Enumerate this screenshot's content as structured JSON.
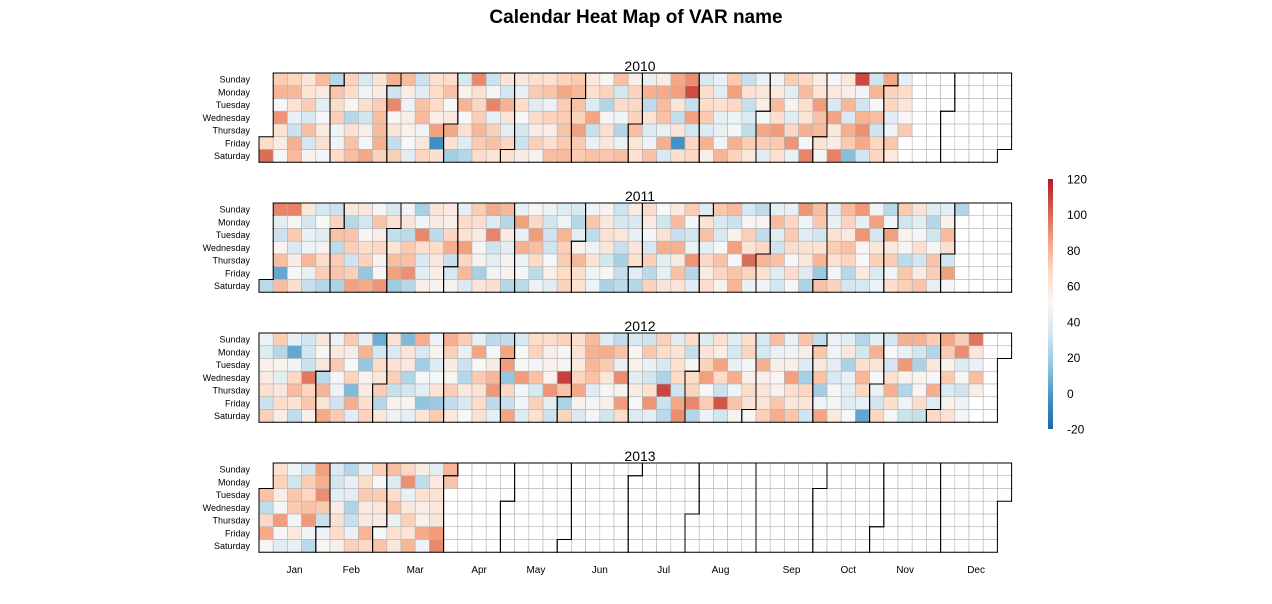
{
  "chart_data": {
    "type": "heatmap",
    "title": "Calendar Heat Map of VAR name",
    "years": [
      2010,
      2011,
      2012,
      2013
    ],
    "year_labels": [
      "2010",
      "2011",
      "2012",
      "2013"
    ],
    "day_labels": [
      "Sunday",
      "Monday",
      "Tuesday",
      "Wednesday",
      "Thursday",
      "Friday",
      "Saturday"
    ],
    "month_labels": [
      "Jan",
      "Feb",
      "Mar",
      "Apr",
      "May",
      "Jun",
      "Jul",
      "Aug",
      "Sep",
      "Oct",
      "Nov",
      "Dec"
    ],
    "data_start": "2010-01-01",
    "data_end": "2013-04-01",
    "value_range": [
      -20,
      120
    ],
    "colorbar_ticks": [
      120,
      100,
      80,
      60,
      40,
      20,
      0,
      -20
    ],
    "colorbar_tick_labels": [
      "120",
      "100",
      "80",
      "60",
      "40",
      "20",
      "0",
      "-20"
    ],
    "color_scale": [
      "#2166ac",
      "#4393c3",
      "#92c5de",
      "#d1e5f0",
      "#f7f7f7",
      "#fddbc7",
      "#f4a582",
      "#d6604d",
      "#b2182b"
    ],
    "empty_cell_color": "#ffffff",
    "cell_border_color": "#b4b4b4",
    "month_border_color": "#000000",
    "daily_values": [
      [
        67,
        99,
        72,
        80,
        48,
        89,
        63,
        58,
        48,
        69,
        79,
        63,
        43,
        31,
        81,
        78,
        60,
        62,
        72,
        36,
        77,
        34,
        54,
        78,
        59,
        41,
        50,
        59,
        64,
        48,
        25,
        75,
        67,
        71,
        46,
        47,
        67,
        70,
        67,
        52,
        25,
        64,
        76,
        77,
        36,
        46,
        65,
        33,
        56,
        48,
        84,
        62,
        57,
        72,
        77,
        78,
        81,
        70,
        81,
        32,
        92,
        51,
        61,
        29,
        71,
        78,
        56,
        45,
        56,
        54,
        50,
        40,
        31,
        40,
        76,
        78,
        46,
        60,
        69,
        64,
        67,
        67,
        55,
        86,
        -4,
        65,
        67,
        76,
        50,
        59,
        84,
        63,
        20,
        36,
        54,
        80,
        50,
        64,
        39,
        25,
        92,
        65,
        69,
        72,
        79,
        73,
        66,
        31,
        48,
        93,
        42,
        71,
        76,
        61,
        62,
        34,
        81,
        62,
        41,
        69,
        64,
        60,
        43,
        67,
        50,
        34,
        31,
        57,
        64,
        73,
        40,
        66,
        57,
        71,
        53,
        64,
        75,
        44,
        70,
        56,
        64,
        77,
        70,
        84,
        72,
        72,
        75,
        73,
        78,
        73,
        79,
        76,
        70,
        86,
        73,
        73,
        59,
        64,
        38,
        85,
        30,
        43,
        76,
        51,
        70,
        24,
        51,
        65,
        60,
        74,
        76,
        34,
        66,
        47,
        24,
        44,
        77,
        56,
        70,
        68,
        70,
        77,
        61,
        63,
        43,
        81,
        27,
        62,
        38,
        45,
        76,
        57,
        83,
        78,
        76,
        43,
        82,
        36,
        84,
        86,
        60,
        29,
        61,
        -3,
        65,
        91,
        107,
        30,
        86,
        34,
        69,
        68,
        36,
        67,
        67,
        73,
        38,
        81,
        55,
        44,
        40,
        63,
        42,
        43,
        47,
        80,
        73,
        86,
        68,
        45,
        48,
        81,
        70,
        30,
        64,
        30,
        38,
        28,
        72,
        60,
        44,
        60,
        55,
        48,
        84,
        72,
        39,
        47,
        59,
        78,
        65,
        87,
        73,
        64,
        72,
        41,
        54,
        39,
        69,
        89,
        43,
        68,
        78,
        65,
        61,
        81,
        48,
        93,
        57,
        62,
        87,
        76,
        78,
        62,
        51,
        48,
        59,
        37,
        85,
        60,
        58,
        94,
        60,
        56,
        79,
        36,
        82,
        73,
        13,
        108,
        47,
        33,
        80,
        90,
        83,
        33,
        32,
        80,
        49,
        77,
        32,
        69,
        69,
        84,
        70,
        69,
        40,
        47,
        74,
        59,
        42,
        67,
        61,
        50,
        73
      ],
      [
        26,
        93,
        41,
        31,
        54,
        77,
        5,
        77,
        94,
        51,
        73,
        37,
        57,
        49,
        65,
        60,
        34,
        44,
        45,
        79,
        43,
        30,
        35,
        50,
        39,
        54,
        66,
        72,
        25,
        31,
        70,
        76,
        27,
        72,
        74,
        23,
        60,
        25,
        75,
        71,
        32,
        71,
        86,
        60,
        34,
        52,
        66,
        70,
        16,
        83,
        51,
        75,
        56,
        68,
        53,
        51,
        89,
        36,
        63,
        29,
        62,
        77,
        86,
        19,
        47,
        61,
        27,
        73,
        76,
        90,
        25,
        21,
        47,
        92,
        65,
        36,
        41,
        56,
        61,
        58,
        27,
        67,
        60,
        57,
        54,
        58,
        55,
        69,
        82,
        30,
        35,
        53,
        42,
        67,
        63,
        86,
        69,
        79,
        37,
        72,
        65,
        57,
        48,
        53,
        21,
        61,
        83,
        38,
        93,
        32,
        41,
        46,
        65,
        79,
        25,
        59,
        41,
        53,
        54,
        25,
        42,
        86,
        42,
        81,
        45,
        49,
        26,
        52,
        68,
        87,
        77,
        67,
        27,
        45,
        45,
        33,
        32,
        32,
        49,
        55,
        39,
        39,
        46,
        80,
        71,
        72,
        67,
        70,
        36,
        25,
        41,
        53,
        79,
        65,
        63,
        47,
        74,
        27,
        46,
        63,
        46,
        45,
        53,
        60,
        63,
        60,
        34,
        51,
        22,
        32,
        35,
        60,
        30,
        21,
        30,
        27,
        57,
        36,
        43,
        61,
        64,
        40,
        25,
        66,
        58,
        48,
        35,
        71,
        26,
        70,
        50,
        33,
        63,
        82,
        41,
        42,
        62,
        58,
        78,
        30,
        81,
        59,
        76,
        62,
        72,
        49,
        33,
        44,
        89,
        25,
        40,
        39,
        63,
        76,
        41,
        68,
        58,
        66,
        74,
        37,
        35,
        49,
        76,
        69,
        53,
        78,
        31,
        54,
        86,
        49,
        75,
        80,
        35,
        51,
        71,
        62,
        99,
        70,
        44,
        28,
        52,
        28,
        68,
        80,
        64,
        46,
        42,
        78,
        40,
        32,
        76,
        39,
        34,
        43,
        69,
        73,
        66,
        51,
        66,
        49,
        89,
        46,
        39,
        63,
        60,
        39,
        23,
        77,
        74,
        33,
        62,
        80,
        17,
        76,
        40,
        44,
        63,
        72,
        64,
        48,
        70,
        78,
        70,
        59,
        76,
        69,
        25,
        34,
        88,
        42,
        89,
        51,
        50,
        59,
        35,
        47,
        86,
        34,
        60,
        71,
        37,
        45,
        26,
        47,
        86,
        59,
        72,
        47,
        65,
        73,
        33,
        54,
        51,
        27,
        74,
        71,
        63,
        41,
        48,
        65,
        33,
        58,
        75,
        40,
        25,
        33,
        51,
        75,
        72,
        42,
        41,
        53,
        78,
        65,
        33,
        86,
        48,
        24
      ],
      [
        45,
        38,
        54,
        58,
        64,
        31,
        71,
        72,
        25,
        54,
        41,
        60,
        66,
        57,
        42,
        5,
        47,
        68,
        78,
        63,
        28,
        33,
        33,
        31,
        96,
        69,
        74,
        55,
        61,
        51,
        60,
        26,
        80,
        62,
        83,
        45,
        59,
        73,
        48,
        45,
        32,
        73,
        73,
        57,
        50,
        70,
        11,
        82,
        40,
        43,
        80,
        16,
        54,
        58,
        65,
        70,
        7,
        34,
        67,
        60,
        72,
        25,
        60,
        64,
        37,
        63,
        71,
        30,
        54,
        45,
        11,
        62,
        59,
        24,
        34,
        51,
        42,
        82,
        36,
        20,
        48,
        41,
        15,
        61,
        45,
        54,
        38,
        48,
        62,
        18,
        73,
        81,
        71,
        57,
        52,
        72,
        28,
        59,
        72,
        43,
        31,
        25,
        59,
        37,
        50,
        42,
        85,
        50,
        73,
        62,
        67,
        64,
        27,
        48,
        57,
        79,
        88,
        27,
        42,
        28,
        85,
        87,
        16,
        69,
        30,
        85,
        35,
        50,
        50,
        87,
        48,
        47,
        38,
        67,
        70,
        48,
        76,
        35,
        71,
        64,
        66,
        56,
        54,
        53,
        89,
        41,
        31,
        70,
        51,
        51,
        110,
        76,
        22,
        70,
        65,
        63,
        59,
        69,
        84,
        54,
        37,
        78,
        81,
        79,
        76,
        39,
        51,
        48,
        39,
        82,
        73,
        61,
        51,
        55,
        33,
        28,
        76,
        43,
        91,
        54,
        87,
        66,
        36,
        52,
        54,
        41,
        57,
        49,
        38,
        32,
        74,
        44,
        33,
        64,
        89,
        41,
        71,
        67,
        36,
        23,
        109,
        31,
        26,
        40,
        62,
        64,
        67,
        32,
        84,
        91,
        67,
        29,
        48,
        67,
        70,
        92,
        24,
        38,
        62,
        70,
        86,
        50,
        72,
        45,
        64,
        57,
        85,
        66,
        31,
        105,
        33,
        39,
        35,
        44,
        82,
        46,
        75,
        53,
        65,
        69,
        48,
        55,
        67,
        63,
        52,
        35,
        35,
        81,
        55,
        61,
        62,
        71,
        77,
        44,
        55,
        52,
        53,
        74,
        82,
        43,
        46,
        56,
        86,
        65,
        60,
        74,
        75,
        56,
        38,
        21,
        69,
        61,
        32,
        29,
        74,
        60,
        76,
        20,
        46,
        85,
        45,
        47,
        41,
        36,
        48,
        48,
        59,
        41,
        60,
        22,
        44,
        41,
        39,
        49,
        25,
        34,
        65,
        79,
        69,
        42,
        4,
        41,
        81,
        61,
        49,
        44,
        33,
        69,
        34,
        50,
        34,
        64,
        81,
        65,
        48,
        81,
        44,
        88,
        53,
        24,
        47,
        31,
        81,
        33,
        22,
        54,
        51,
        66,
        30,
        72,
        24,
        60,
        49,
        82,
        39,
        68,
        84,
        73,
        54,
        73,
        37,
        53,
        64,
        72,
        91,
        38,
        51,
        32,
        45,
        48,
        97,
        61,
        44,
        77,
        56
      ],
      [
        76,
        28,
        68,
        83,
        52,
        64,
        70,
        57,
        48,
        87,
        49,
        40,
        46,
        33,
        74,
        73,
        47,
        59,
        43,
        33,
        72,
        69,
        76,
        88,
        47,
        26,
        86,
        82,
        91,
        73,
        30,
        45,
        51,
        37,
        34,
        41,
        57,
        64,
        67,
        55,
        25,
        43,
        40,
        23,
        30,
        44,
        71,
        44,
        67,
        73,
        58,
        59,
        80,
        68,
        71,
        50,
        72,
        60,
        58,
        50,
        75,
        77,
        38,
        66,
        75,
        44,
        64,
        60,
        68,
        90,
        44,
        59,
        71,
        62,
        79,
        57,
        28,
        64,
        56,
        54,
        83,
        45,
        41,
        59,
        63,
        60,
        61,
        87,
        92,
        80,
        75
      ]
    ]
  }
}
